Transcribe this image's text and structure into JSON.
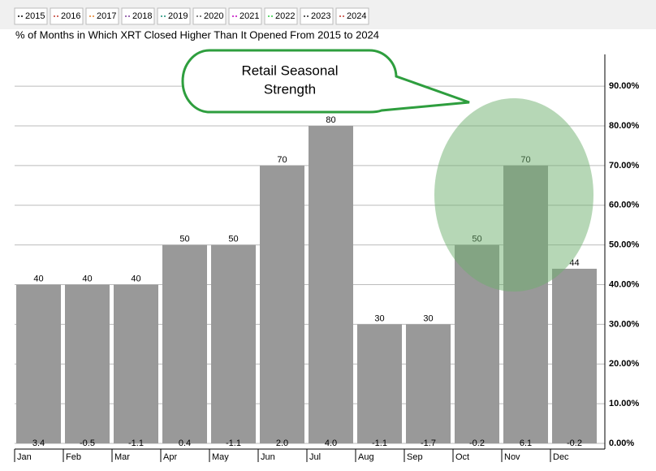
{
  "chart_data": {
    "type": "bar",
    "title": "% of Months in Which XRT Closed Higher Than It Opened From 2015 to 2024",
    "legend": [
      {
        "name": "2015",
        "color": "#000000"
      },
      {
        "name": "2016",
        "color": "#c0392b"
      },
      {
        "name": "2017",
        "color": "#e67e22"
      },
      {
        "name": "2018",
        "color": "#7d3c98"
      },
      {
        "name": "2019",
        "color": "#138d75"
      },
      {
        "name": "2020",
        "color": "#555555"
      },
      {
        "name": "2021",
        "color": "#c000c0"
      },
      {
        "name": "2022",
        "color": "#2ecc40"
      },
      {
        "name": "2023",
        "color": "#222222"
      },
      {
        "name": "2024",
        "color": "#c0392b"
      }
    ],
    "categories": [
      "Jan",
      "Feb",
      "Mar",
      "Apr",
      "May",
      "Jun",
      "Jul",
      "Aug",
      "Sep",
      "Oct",
      "Nov",
      "Dec"
    ],
    "values": [
      40,
      40,
      40,
      50,
      50,
      70,
      80,
      30,
      30,
      50,
      70,
      44
    ],
    "color": "#999999",
    "average_change": {
      "values": [
        3.4,
        -0.5,
        -1.1,
        0.4,
        -1.1,
        2.0,
        4.0,
        -1.1,
        -1.7,
        -0.2,
        6.1,
        -0.2
      ],
      "value_labels": [
        "3.4",
        "-0.5",
        "-1.1",
        "0.4",
        "-1.1",
        "2.0",
        "4.0",
        "-1.1",
        "-1.7",
        "-0.2",
        "6.1",
        "-0.2"
      ]
    },
    "ylim": [
      0,
      98
    ],
    "yticks": [
      {
        "value": 0,
        "label": "0.00%"
      },
      {
        "value": 10,
        "label": "10.00%"
      },
      {
        "value": 20,
        "label": "20.00%"
      },
      {
        "value": 30,
        "label": "30.00%"
      },
      {
        "value": 40,
        "label": "40.00%"
      },
      {
        "value": 50,
        "label": "50.00%"
      },
      {
        "value": 60,
        "label": "60.00%"
      },
      {
        "value": 70,
        "label": "70.00%"
      },
      {
        "value": 80,
        "label": "80.00%"
      },
      {
        "value": 90,
        "label": "90.00%"
      }
    ],
    "grid": true,
    "annotation": {
      "lines": [
        "Retail Seasonal",
        "Strength"
      ]
    }
  }
}
